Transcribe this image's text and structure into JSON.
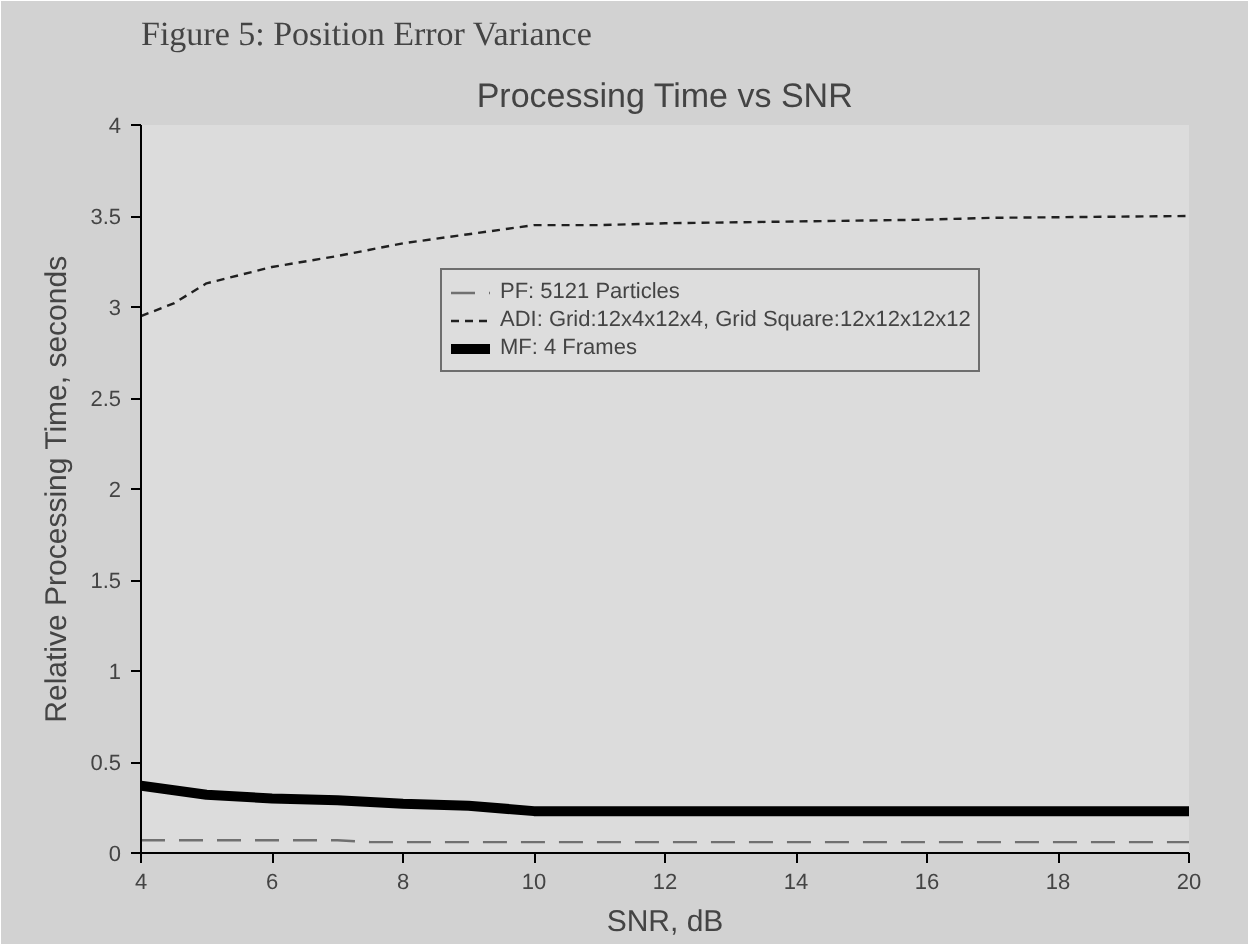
{
  "chart_data": {
    "type": "line",
    "title": "Processing Time vs SNR",
    "xlabel": "SNR, dB",
    "ylabel": "Relative Processing Time, seconds",
    "annotations": [
      "Figure 5: Position Error Variance"
    ],
    "xlim": [
      4,
      20
    ],
    "xticks": [
      4,
      6,
      8,
      10,
      12,
      14,
      16,
      18,
      20
    ],
    "ylim": [
      0,
      4
    ],
    "yticks": [
      0,
      0.5,
      1,
      1.5,
      2,
      2.5,
      3,
      3.5,
      4
    ],
    "grid": false,
    "legend": "center",
    "marker": "none",
    "series": [
      {
        "name": "PF: 5121 Particles",
        "color": "#707070",
        "line_style": "dashed",
        "x": [
          4,
          7,
          7.5,
          20
        ],
        "values": [
          0.07,
          0.07,
          0.06,
          0.06
        ]
      },
      {
        "name": "ADI: Grid:12x4x12x4, Grid Square:12x12x12x12",
        "color": "#202020",
        "line_style": "dotted",
        "x": [
          4,
          4.5,
          5,
          6,
          7,
          8,
          9,
          10,
          11,
          12,
          14,
          16,
          17,
          20
        ],
        "values": [
          2.95,
          3.02,
          3.13,
          3.22,
          3.28,
          3.35,
          3.4,
          3.45,
          3.45,
          3.46,
          3.47,
          3.48,
          3.49,
          3.5
        ]
      },
      {
        "name": "MF: 4 Frames",
        "color": "#000000",
        "line_style": "solid",
        "x": [
          4,
          5,
          6,
          7,
          8,
          9,
          10,
          20
        ],
        "values": [
          0.37,
          0.32,
          0.3,
          0.29,
          0.27,
          0.26,
          0.23,
          0.23
        ]
      }
    ]
  }
}
